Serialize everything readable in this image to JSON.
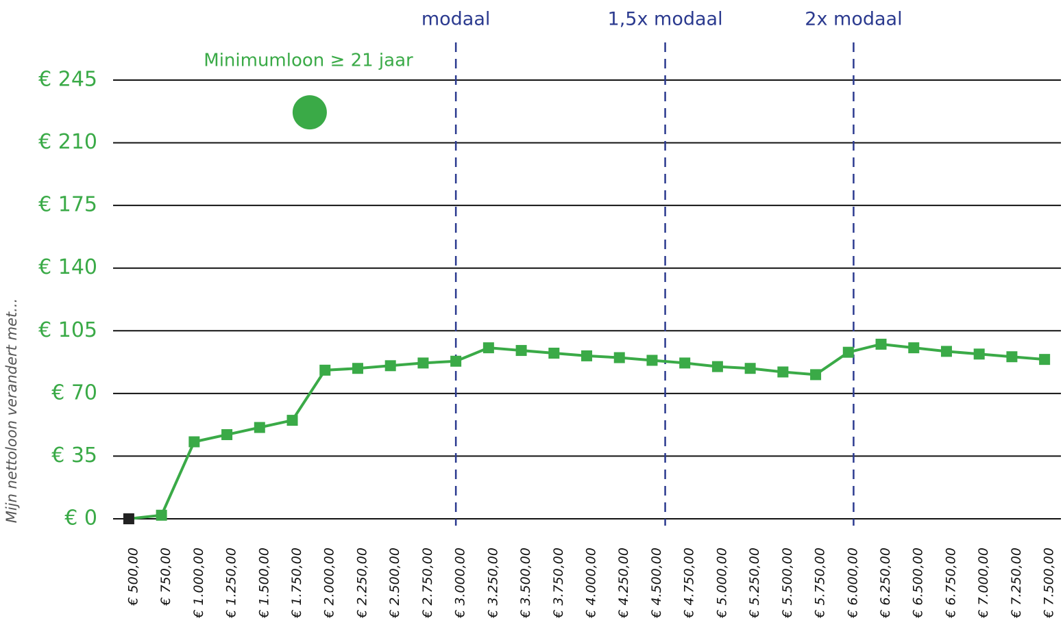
{
  "chart_data": {
    "type": "line",
    "ylabel": "Mijn nettoloon verandert met...",
    "x": [
      500,
      750,
      1000,
      1250,
      1500,
      1750,
      2000,
      2250,
      2500,
      2750,
      3000,
      3250,
      3500,
      3750,
      4000,
      4250,
      4500,
      4750,
      5000,
      5250,
      5500,
      5750,
      6000,
      6250,
      6500,
      6750,
      7000,
      7250,
      7500
    ],
    "xlim": [
      380,
      7625
    ],
    "xticks": [
      {
        "value": 500,
        "label": "€ 500,00"
      },
      {
        "value": 750,
        "label": "€ 750,00"
      },
      {
        "value": 1000,
        "label": "€ 1.000,00"
      },
      {
        "value": 1250,
        "label": "€ 1.250,00"
      },
      {
        "value": 1500,
        "label": "€ 1.500,00"
      },
      {
        "value": 1750,
        "label": "€ 1.750,00"
      },
      {
        "value": 2000,
        "label": "€ 2.000,00"
      },
      {
        "value": 2250,
        "label": "€ 2.250,00"
      },
      {
        "value": 2500,
        "label": "€ 2.500,00"
      },
      {
        "value": 2750,
        "label": "€ 2.750,00"
      },
      {
        "value": 3000,
        "label": "€ 3.000,00"
      },
      {
        "value": 3250,
        "label": "€ 3.250,00"
      },
      {
        "value": 3500,
        "label": "€ 3.500,00"
      },
      {
        "value": 3750,
        "label": "€ 3.750,00"
      },
      {
        "value": 4000,
        "label": "€ 4.000,00"
      },
      {
        "value": 4250,
        "label": "€ 4.250,00"
      },
      {
        "value": 4500,
        "label": "€ 4.500,00"
      },
      {
        "value": 4750,
        "label": "€ 4.750,00"
      },
      {
        "value": 5000,
        "label": "€ 5.000,00"
      },
      {
        "value": 5250,
        "label": "€ 5.250,00"
      },
      {
        "value": 5500,
        "label": "€ 5.500,00"
      },
      {
        "value": 5750,
        "label": "€ 5.750,00"
      },
      {
        "value": 6000,
        "label": "€ 6.000,00"
      },
      {
        "value": 6250,
        "label": "€ 6.250,00"
      },
      {
        "value": 6500,
        "label": "€ 6.500,00"
      },
      {
        "value": 6750,
        "label": "€ 6.750,00"
      },
      {
        "value": 7000,
        "label": "€ 7.000,00"
      },
      {
        "value": 7250,
        "label": "€ 7.250,00"
      },
      {
        "value": 7500,
        "label": "€ 7.500,00"
      }
    ],
    "ylim": [
      0,
      245
    ],
    "yticks": [
      {
        "value": 0,
        "label": "€ 0"
      },
      {
        "value": 35,
        "label": "€ 35"
      },
      {
        "value": 70,
        "label": "€ 70"
      },
      {
        "value": 105,
        "label": "€ 105"
      },
      {
        "value": 140,
        "label": "€ 140"
      },
      {
        "value": 175,
        "label": "€ 175"
      },
      {
        "value": 210,
        "label": "€ 210"
      },
      {
        "value": 245,
        "label": "€ 245"
      }
    ],
    "grid": true,
    "series": [
      {
        "color": "#3aaa47",
        "first_marker_color": "#222222",
        "values": [
          0,
          2,
          43,
          47,
          51,
          55,
          83,
          84,
          85.5,
          87,
          88,
          95.5,
          94,
          92.5,
          91,
          90,
          88.5,
          87,
          85,
          84,
          82,
          80.5,
          93,
          97.5,
          95.5,
          93.5,
          92,
          90.5,
          89
        ]
      }
    ],
    "reference_lines": [
      {
        "label": "modaal",
        "x": 3000
      },
      {
        "label": "1,5x modaal",
        "x": 4600
      },
      {
        "label": "2x modaal",
        "x": 6040
      }
    ],
    "reference_color": "#2b3a8f",
    "highlight": {
      "label": "Minimumloon ≥ 21 jaar",
      "x": 1883,
      "y": 227,
      "color": "#3aaa47"
    }
  }
}
